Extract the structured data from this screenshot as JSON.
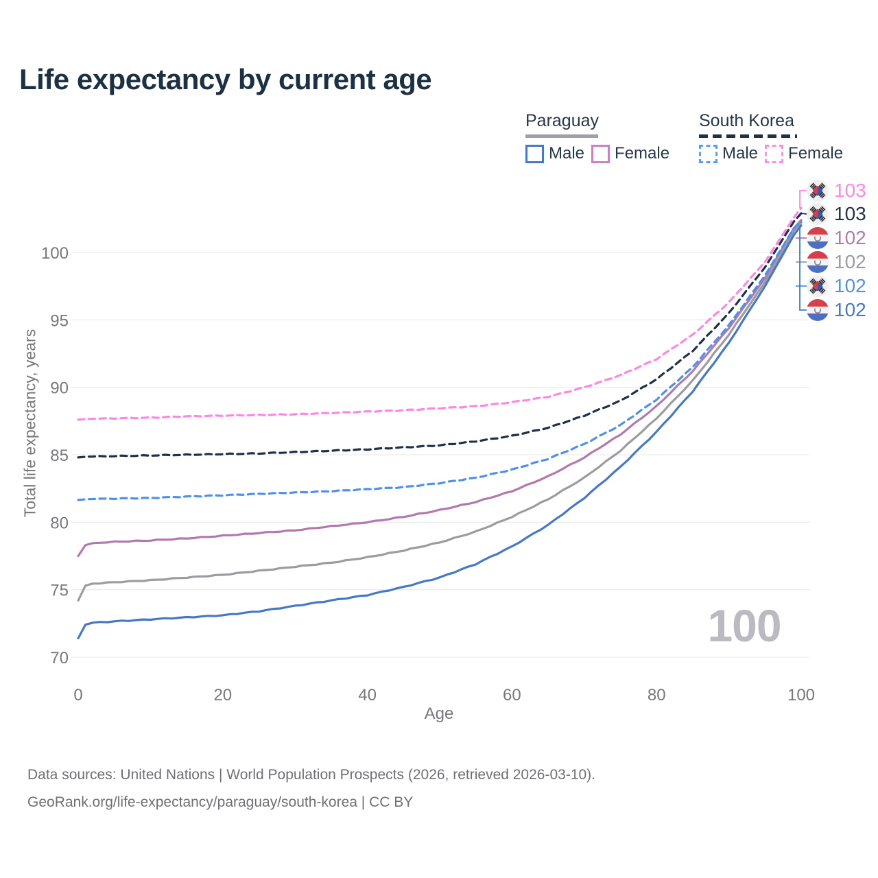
{
  "title": "Life expectancy by current age",
  "legend": {
    "paraguay": {
      "title": "Paraguay",
      "male": "Male",
      "female": "Female"
    },
    "south_korea": {
      "title": "South Korea",
      "male": "Male",
      "female": "Female"
    }
  },
  "watermark": "100",
  "footer": {
    "line1": "Data sources: United Nations | World Population Prospects (2026, retrieved 2026-03-10).",
    "line2": "GeoRank.org/life-expectancy/paraguay/south-korea | CC BY"
  },
  "colors": {
    "title_text": "#1C3144",
    "legend_text": "#27364A",
    "tick_text": "#77777C",
    "gridline": "#ECECEE",
    "footer_text": "#6F6F74",
    "watermark": "#BABAC0",
    "paraguay_male_blue": "#4678C8",
    "paraguay_female_purple": "#B279AE",
    "paraguay_total_gray": "#9B9BA0",
    "south_korea_male_blue": "#4E90EE",
    "south_korea_female_pink": "#FF86E2",
    "south_korea_total_navy": "#1F3048"
  },
  "chart_data": {
    "type": "line",
    "title": "Life expectancy by current age",
    "xlabel": "Age",
    "ylabel": "Total life expectancy, years",
    "xlim": [
      0,
      100
    ],
    "ylim": [
      70,
      103.5
    ],
    "xticks": [
      0,
      20,
      40,
      60,
      80,
      100
    ],
    "yticks": [
      70,
      75,
      80,
      85,
      90,
      95,
      100
    ],
    "grid": "horizontal-only",
    "legend_position": "top-right",
    "ages": [
      0,
      1,
      2,
      5,
      10,
      15,
      20,
      25,
      30,
      35,
      40,
      45,
      50,
      55,
      60,
      65,
      70,
      75,
      80,
      85,
      90,
      95,
      99,
      100
    ],
    "series": [
      {
        "name": "South Korea Female",
        "country": "South Korea",
        "sex": "Female",
        "style": "dashed",
        "color": "#FF86E2",
        "flag": "kr",
        "end_label": "103",
        "values": [
          87.6,
          87.65,
          87.67,
          87.7,
          87.75,
          87.85,
          87.9,
          87.95,
          88.0,
          88.1,
          88.2,
          88.3,
          88.45,
          88.6,
          88.9,
          89.3,
          90.0,
          90.9,
          92.1,
          93.9,
          96.3,
          99.3,
          102.6,
          103.3
        ]
      },
      {
        "name": "South Korea Both Sexes",
        "country": "South Korea",
        "sex": "Both",
        "style": "dashed",
        "color": "#1F3048",
        "flag": "kr",
        "end_label": "103",
        "values": [
          84.8,
          84.85,
          84.87,
          84.9,
          84.95,
          85.0,
          85.05,
          85.1,
          85.2,
          85.3,
          85.4,
          85.55,
          85.7,
          86.0,
          86.4,
          87.0,
          87.9,
          89.0,
          90.6,
          92.7,
          95.5,
          98.9,
          102.3,
          102.9
        ]
      },
      {
        "name": "Paraguay Female",
        "country": "Paraguay",
        "sex": "Female",
        "style": "solid",
        "color": "#B279AE",
        "flag": "py",
        "end_label": "102",
        "values": [
          77.5,
          78.3,
          78.45,
          78.55,
          78.65,
          78.8,
          79.0,
          79.2,
          79.4,
          79.7,
          80.0,
          80.4,
          80.9,
          81.5,
          82.3,
          83.4,
          84.8,
          86.5,
          88.6,
          91.2,
          94.4,
          98.1,
          101.8,
          102.4
        ]
      },
      {
        "name": "Paraguay Both Sexes",
        "country": "Paraguay",
        "sex": "Both",
        "style": "solid",
        "color": "#9B9BA0",
        "flag": "py",
        "end_label": "102",
        "values": [
          74.2,
          75.3,
          75.45,
          75.55,
          75.7,
          75.9,
          76.1,
          76.4,
          76.7,
          77.0,
          77.4,
          77.9,
          78.5,
          79.3,
          80.4,
          81.7,
          83.3,
          85.3,
          87.7,
          90.5,
          93.9,
          97.8,
          101.6,
          102.2
        ]
      },
      {
        "name": "South Korea Male",
        "country": "South Korea",
        "sex": "Male",
        "style": "dashed",
        "color": "#4E90EE",
        "flag": "kr",
        "end_label": "102",
        "values": [
          81.65,
          81.7,
          81.72,
          81.75,
          81.8,
          81.9,
          82.0,
          82.1,
          82.2,
          82.3,
          82.45,
          82.6,
          82.9,
          83.3,
          83.9,
          84.7,
          85.8,
          87.2,
          89.1,
          91.5,
          94.6,
          98.3,
          101.8,
          102.3
        ]
      },
      {
        "name": "Paraguay Male",
        "country": "Paraguay",
        "sex": "Male",
        "style": "solid",
        "color": "#4678C8",
        "flag": "py",
        "end_label": "102",
        "values": [
          71.4,
          72.4,
          72.55,
          72.65,
          72.8,
          72.95,
          73.1,
          73.4,
          73.8,
          74.2,
          74.6,
          75.2,
          75.9,
          76.9,
          78.2,
          79.8,
          81.8,
          84.1,
          86.7,
          89.7,
          93.3,
          97.5,
          101.3,
          102.0
        ]
      }
    ]
  }
}
